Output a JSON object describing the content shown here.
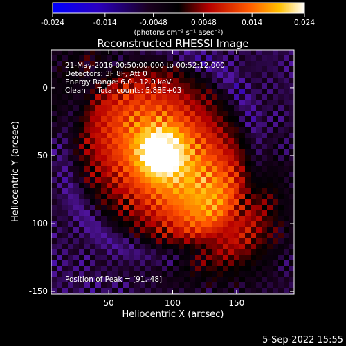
{
  "colorbar": {
    "tick_labels": [
      "-0.024",
      "-0.014",
      "-0.0048",
      "0.0048",
      "0.014",
      "0.024"
    ],
    "unit_label": "(photons cm⁻² s⁻¹ asec⁻²)",
    "min": -0.024,
    "max": 0.024
  },
  "chart_data": {
    "type": "heatmap",
    "title": "Reconstructed RHESSI Image",
    "xlabel": "Heliocentric X (arcsec)",
    "ylabel": "Heliocentric Y (arcsec)",
    "xlim": [
      5,
      195
    ],
    "ylim": [
      -152,
      28
    ],
    "x_ticks": [
      50,
      100,
      150
    ],
    "y_ticks": [
      0,
      -50,
      -100,
      -150
    ],
    "colormap": [
      "#0000ff",
      "#3a00b0",
      "#000000",
      "#b50000",
      "#ff5a00",
      "#ffc000",
      "#ffffff"
    ],
    "annotations": [
      "21-May-2016 00:50:00.000 to 00:52:12.000",
      "Detectors: 3F 8F, Att 0",
      "Energy Range: 6.0 - 12.0 keV",
      "Clean     Total counts: 5.88E+03"
    ],
    "peak_label": "Position of Peak = [91,-48]",
    "peak": [
      91,
      -48
    ]
  },
  "footer": {
    "date": "5-Sep-2022 15:55"
  }
}
